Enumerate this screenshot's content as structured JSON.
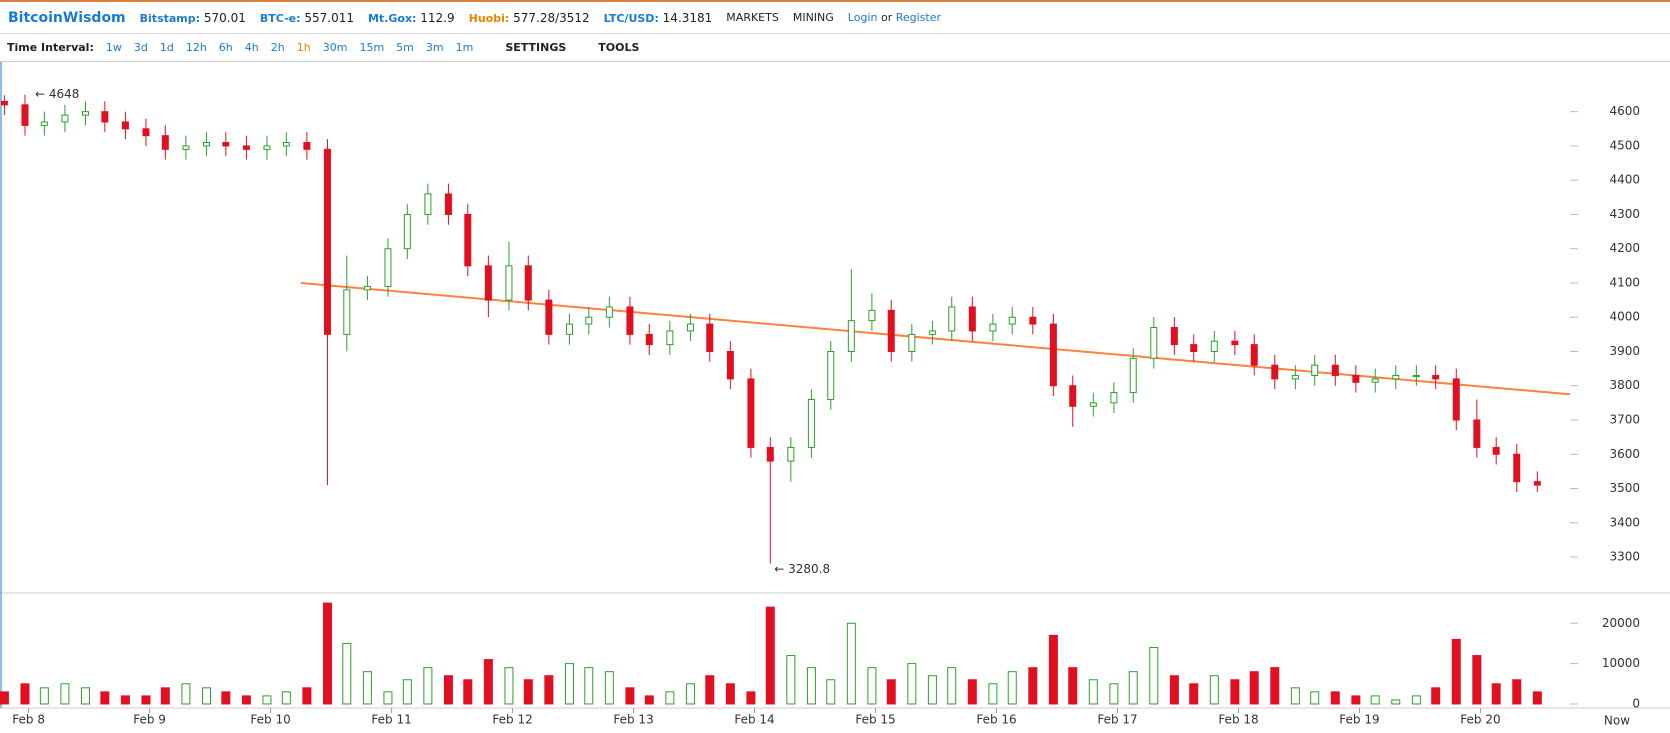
{
  "header": {
    "brand": "BitcoinWisdom",
    "tickers": [
      {
        "label": "Bitstamp:",
        "value": "570.01"
      },
      {
        "label": "BTC-e:",
        "value": "557.011"
      },
      {
        "label": "Mt.Gox:",
        "value": "112.9"
      },
      {
        "label": "Huobi:",
        "value": "577.28/3512"
      },
      {
        "label": "LTC/USD:",
        "value": "14.3181"
      }
    ],
    "menus": [
      "MARKETS",
      "MINING"
    ],
    "login": "Login",
    "or": "or",
    "register": "Register"
  },
  "toolbar": {
    "label": "Time Interval:",
    "intervals": [
      "1w",
      "3d",
      "1d",
      "12h",
      "6h",
      "4h",
      "2h",
      "1h",
      "30m",
      "15m",
      "5m",
      "3m",
      "1m"
    ],
    "active": "1h",
    "settings": "SETTINGS",
    "tools": "TOOLS"
  },
  "chart_data": {
    "type": "candlestick",
    "x": [
      -0.2,
      -0.03,
      0.13,
      0.3,
      0.47,
      0.63,
      0.8,
      0.97,
      1.13,
      1.3,
      1.47,
      1.63,
      1.8,
      1.97,
      2.13,
      2.3,
      2.47,
      2.63,
      2.8,
      2.97,
      3.13,
      3.3,
      3.47,
      3.63,
      3.8,
      3.97,
      4.13,
      4.3,
      4.47,
      4.63,
      4.8,
      4.97,
      5.13,
      5.3,
      5.47,
      5.63,
      5.8,
      5.97,
      6.13,
      6.3,
      6.47,
      6.63,
      6.8,
      6.97,
      7.13,
      7.3,
      7.47,
      7.63,
      7.8,
      7.97,
      8.13,
      8.3,
      8.47,
      8.63,
      8.8,
      8.97,
      9.13,
      9.3,
      9.47,
      9.63,
      9.8,
      9.97,
      10.13,
      10.3,
      10.47,
      10.63,
      10.8,
      10.97,
      11.13,
      11.3,
      11.47,
      11.63,
      11.8,
      11.97,
      12.13,
      12.3,
      12.47
    ],
    "open": [
      4630,
      4620,
      4560,
      4570,
      4590,
      4600,
      4570,
      4550,
      4530,
      4490,
      4500,
      4510,
      4500,
      4490,
      4500,
      4510,
      4490,
      3950,
      4080,
      4090,
      4200,
      4300,
      4360,
      4300,
      4150,
      4050,
      4150,
      4050,
      3950,
      3980,
      4000,
      4030,
      3950,
      3920,
      3960,
      3980,
      3900,
      3820,
      3620,
      3580,
      3620,
      3760,
      3900,
      3990,
      4020,
      3900,
      3950,
      3960,
      4030,
      3960,
      3980,
      4000,
      3980,
      3800,
      3740,
      3750,
      3780,
      3880,
      3970,
      3920,
      3900,
      3930,
      3920,
      3860,
      3820,
      3830,
      3860,
      3830,
      3810,
      3820,
      3830,
      3830,
      3820,
      3700,
      3620,
      3600,
      3520
    ],
    "high": [
      4648,
      4650,
      4600,
      4620,
      4630,
      4630,
      4600,
      4580,
      4560,
      4530,
      4540,
      4540,
      4530,
      4530,
      4540,
      4540,
      4520,
      4180,
      4120,
      4230,
      4330,
      4390,
      4390,
      4330,
      4180,
      4220,
      4180,
      4080,
      4010,
      4030,
      4060,
      4060,
      3980,
      3990,
      4010,
      4010,
      3930,
      3850,
      3650,
      3650,
      3790,
      3930,
      4140,
      4070,
      4050,
      3980,
      3990,
      4060,
      4060,
      4010,
      4030,
      4030,
      4010,
      3830,
      3780,
      3810,
      3910,
      4000,
      4000,
      3950,
      3960,
      3960,
      3950,
      3890,
      3860,
      3890,
      3890,
      3860,
      3850,
      3860,
      3860,
      3860,
      3850,
      3760,
      3650,
      3630,
      3550
    ],
    "low": [
      4590,
      4530,
      4530,
      4540,
      4560,
      4540,
      4520,
      4500,
      4460,
      4460,
      4470,
      4470,
      4460,
      4460,
      4470,
      4460,
      3510,
      3900,
      4050,
      4060,
      4170,
      4270,
      4270,
      4120,
      4000,
      4020,
      4020,
      3920,
      3920,
      3950,
      3970,
      3920,
      3890,
      3890,
      3930,
      3870,
      3790,
      3590,
      3280.8,
      3520,
      3590,
      3730,
      3870,
      3960,
      3870,
      3870,
      3920,
      3930,
      3930,
      3930,
      3950,
      3950,
      3770,
      3680,
      3710,
      3720,
      3750,
      3850,
      3890,
      3870,
      3870,
      3890,
      3830,
      3790,
      3790,
      3800,
      3800,
      3780,
      3780,
      3790,
      3800,
      3790,
      3670,
      3590,
      3570,
      3490,
      3490
    ],
    "close": [
      4620,
      4560,
      4570,
      4590,
      4600,
      4570,
      4550,
      4530,
      4490,
      4500,
      4510,
      4500,
      4490,
      4500,
      4510,
      4490,
      3950,
      4080,
      4090,
      4200,
      4300,
      4360,
      4300,
      4150,
      4050,
      4150,
      4050,
      3950,
      3980,
      4000,
      4030,
      3950,
      3920,
      3960,
      3980,
      3900,
      3820,
      3620,
      3580,
      3620,
      3760,
      3900,
      3990,
      4020,
      3900,
      3950,
      3960,
      4030,
      3960,
      3980,
      4000,
      3980,
      3800,
      3740,
      3750,
      3780,
      3880,
      3970,
      3920,
      3900,
      3930,
      3920,
      3860,
      3820,
      3830,
      3860,
      3830,
      3810,
      3820,
      3830,
      3830,
      3820,
      3700,
      3620,
      3600,
      3520,
      3510
    ],
    "volume": [
      3000,
      5000,
      4000,
      5000,
      4000,
      3000,
      2000,
      2000,
      4000,
      5000,
      4000,
      3000,
      2000,
      2000,
      3000,
      4000,
      25000,
      15000,
      8000,
      3000,
      6000,
      9000,
      7000,
      6000,
      11000,
      9000,
      6000,
      7000,
      10000,
      9000,
      8000,
      4000,
      2000,
      3000,
      5000,
      7000,
      5000,
      3000,
      24000,
      12000,
      9000,
      6000,
      20000,
      9000,
      6000,
      10000,
      7000,
      9000,
      6000,
      5000,
      8000,
      9000,
      17000,
      9000,
      6000,
      5000,
      8000,
      14000,
      7000,
      5000,
      7000,
      6000,
      8000,
      9000,
      4000,
      3000,
      3000,
      2000,
      2000,
      1000,
      2000,
      4000,
      16000,
      12000,
      5000,
      6000,
      3000
    ],
    "up_color": "#2ca02c",
    "down_color": "#e01020",
    "xlim": [
      -0.22,
      12.74
    ],
    "xticks": [
      {
        "value": 0,
        "label": "Feb 8"
      },
      {
        "value": 1,
        "label": "Feb 9"
      },
      {
        "value": 2,
        "label": "Feb 10"
      },
      {
        "value": 3,
        "label": "Feb 11"
      },
      {
        "value": 4,
        "label": "Feb 12"
      },
      {
        "value": 5,
        "label": "Feb 13"
      },
      {
        "value": 6,
        "label": "Feb 14"
      },
      {
        "value": 7,
        "label": "Feb 15"
      },
      {
        "value": 8,
        "label": "Feb 16"
      },
      {
        "value": 9,
        "label": "Feb 17"
      },
      {
        "value": 10,
        "label": "Feb 18"
      },
      {
        "value": 11,
        "label": "Feb 19"
      },
      {
        "value": 12,
        "label": "Feb 20"
      }
    ],
    "now_label": "Now",
    "ylim": [
      3195,
      4745
    ],
    "yticks": [
      3300,
      3400,
      3500,
      3600,
      3700,
      3800,
      3900,
      4000,
      4100,
      4200,
      4300,
      4400,
      4500,
      4600
    ],
    "volume_ylim": [
      -1000,
      27500
    ],
    "volume_yticks": [
      0,
      10000,
      20000
    ],
    "max_label": "← 4648",
    "min_label": "← 3280.8",
    "trend_line": {
      "x": [
        2.25,
        12.74
      ],
      "y": [
        4100,
        3775
      ],
      "color": "#ff8040"
    }
  }
}
